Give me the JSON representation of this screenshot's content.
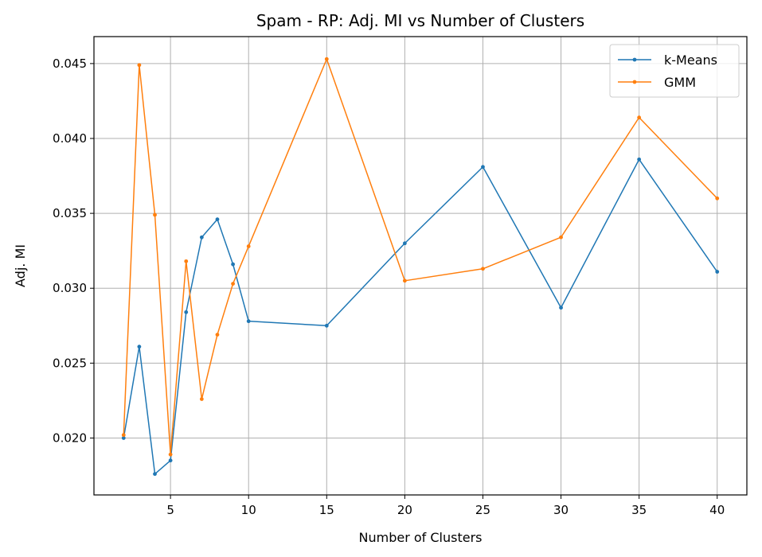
{
  "chart_data": {
    "type": "line",
    "title": "Spam - RP: Adj. MI vs Number of Clusters",
    "xlabel": "Number of Clusters",
    "ylabel": "Adj. MI",
    "xlim": [
      0.1,
      41.9
    ],
    "ylim": [
      0.0162,
      0.0468
    ],
    "xticks": [
      5,
      10,
      15,
      20,
      25,
      30,
      35,
      40
    ],
    "yticks": [
      0.02,
      0.025,
      0.03,
      0.035,
      0.04,
      0.045
    ],
    "ytick_labels": [
      "0.020",
      "0.025",
      "0.030",
      "0.035",
      "0.040",
      "0.045"
    ],
    "grid": true,
    "legend_position": "top-right",
    "x": [
      2,
      3,
      4,
      5,
      6,
      7,
      8,
      9,
      10,
      15,
      20,
      25,
      30,
      35,
      40
    ],
    "series": [
      {
        "name": "k-Means",
        "color": "#1f77b4",
        "values": [
          0.02,
          0.0261,
          0.0176,
          0.0185,
          0.0284,
          0.0334,
          0.0346,
          0.0316,
          0.0278,
          0.0275,
          0.033,
          0.0381,
          0.0287,
          0.0386,
          0.0311
        ]
      },
      {
        "name": "GMM",
        "color": "#ff7f0e",
        "values": [
          0.0202,
          0.0449,
          0.0349,
          0.0189,
          0.0318,
          0.0226,
          0.0269,
          0.0303,
          0.0328,
          0.0453,
          0.0305,
          0.0313,
          0.0334,
          0.0414,
          0.036
        ]
      }
    ]
  }
}
